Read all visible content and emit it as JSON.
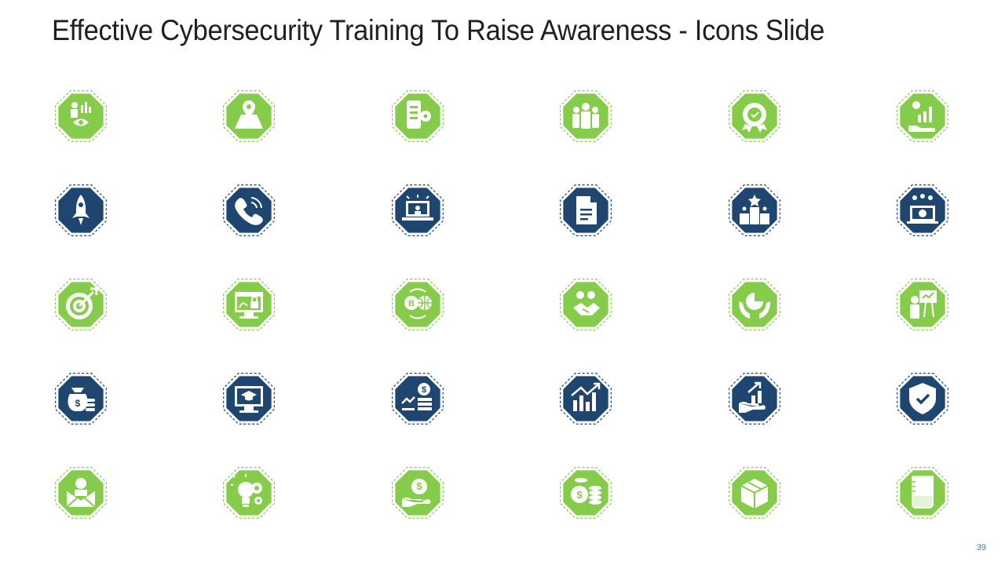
{
  "slide": {
    "title": "Effective Cybersecurity Training To Raise Awareness - Icons Slide",
    "page_number": "39"
  },
  "colors": {
    "green": "#86cc4b",
    "navy": "#1e4670",
    "background": "#ffffff"
  },
  "icon_rows": [
    {
      "theme": "green",
      "icons": [
        "analyst-eye-chart-icon",
        "map-location-pin-icon",
        "mobile-settings-icon",
        "team-group-icon",
        "quality-badge-icon",
        "hand-money-growth-icon"
      ]
    },
    {
      "theme": "navy",
      "icons": [
        "rocket-icon",
        "phone-call-icon",
        "laptop-lecture-icon",
        "document-icon",
        "award-podium-icon",
        "computer-team-icon"
      ]
    },
    {
      "theme": "green",
      "icons": [
        "target-arrow-icon",
        "secure-website-icon",
        "crypto-globe-exchange-icon",
        "handshake-partners-icon",
        "hands-pie-chart-icon",
        "presenter-board-icon"
      ]
    },
    {
      "theme": "navy",
      "icons": [
        "money-bag-coins-icon",
        "online-education-icon",
        "dollar-coin-growth-icon",
        "bar-chart-growth-icon",
        "hand-growth-chart-icon",
        "security-shield-icon"
      ]
    },
    {
      "theme": "green",
      "icons": [
        "user-mail-icon",
        "idea-gears-icon",
        "hand-dollar-icon",
        "coin-stacks-icon",
        "package-box-icon",
        "beaker-scale-icon"
      ]
    }
  ]
}
